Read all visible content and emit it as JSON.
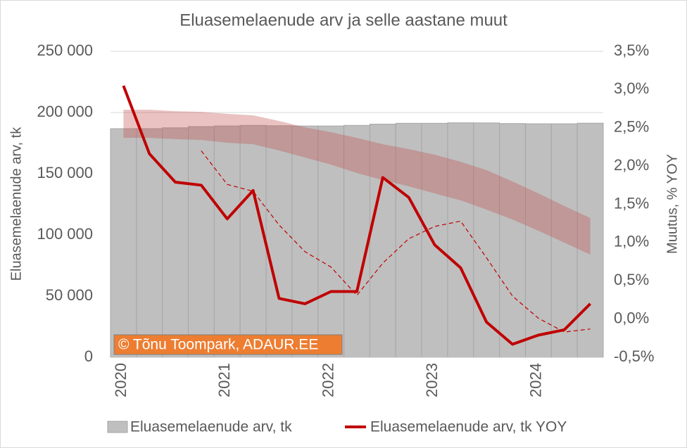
{
  "chart_data": {
    "type": "bar-line",
    "title": "Eluasemelaenude arv ja selle aastane muut",
    "y_label": "Eluasemelaenude arv, tk",
    "y2_label": "Muutus, % YOY",
    "annotation": "© Tõnu Toompark, ADAUR.EE",
    "categories": [
      "2020",
      null,
      null,
      null,
      "2021",
      null,
      null,
      null,
      "2022",
      null,
      null,
      null,
      "2023",
      null,
      null,
      null,
      "2024",
      null,
      null
    ],
    "series": [
      {
        "name": "Eluasemelaenude arv, tk",
        "type": "bar",
        "color": "#bfbfbf",
        "values": [
          186800,
          186800,
          187500,
          188500,
          189000,
          189500,
          189200,
          189000,
          189000,
          189500,
          190500,
          191200,
          191200,
          191600,
          191500,
          191000,
          190800,
          190800,
          191300
        ]
      },
      {
        "name": "Eluasemelaenude arv, tk YOY",
        "type": "line",
        "axis": "y2",
        "color": "#c00000",
        "values": [
          3.05,
          2.16,
          1.79,
          1.75,
          1.31,
          1.68,
          0.27,
          0.2,
          0.36,
          0.36,
          1.85,
          1.59,
          0.97,
          0.67,
          -0.04,
          -0.33,
          -0.21,
          -0.14,
          0.2
        ]
      },
      {
        "type": "line",
        "axis": "y2",
        "color": "#c00000",
        "dashed": true,
        "values": [
          null,
          null,
          null,
          2.2,
          1.76,
          1.67,
          1.23,
          0.88,
          0.68,
          0.31,
          0.73,
          1.05,
          1.21,
          1.28,
          0.8,
          0.3,
          0.01,
          -0.17,
          -0.13
        ]
      }
    ],
    "band": {
      "color": "#c0504d",
      "upper": [
        202300,
        202300,
        201100,
        200600,
        198900,
        197700,
        193100,
        187900,
        183900,
        179300,
        174100,
        170100,
        165500,
        159800,
        152900,
        143700,
        133900,
        123600,
        113800
      ],
      "lower": [
        179300,
        179300,
        178200,
        177600,
        175300,
        174100,
        169000,
        163200,
        157500,
        150600,
        144800,
        139700,
        133900,
        128200,
        120700,
        112600,
        103400,
        93700,
        83900
      ]
    },
    "ylim": [
      0,
      250000
    ],
    "yticks": [
      0,
      {
        "value": 50000,
        "label": "50 000"
      },
      {
        "value": 100000,
        "label": "100 000"
      },
      {
        "value": 150000,
        "label": "150 000"
      },
      {
        "value": 200000,
        "label": "200 000"
      },
      {
        "value": 250000,
        "label": "250 000"
      }
    ],
    "y2lim": [
      -0.5,
      3.5
    ],
    "y2ticks": [
      {
        "value": -0.5,
        "label": "-0,5%"
      },
      {
        "value": 0,
        "label": "0,0%"
      },
      {
        "value": 0.5,
        "label": "0,5%"
      },
      {
        "value": 1,
        "label": "1,0%"
      },
      {
        "value": 1.5,
        "label": "1,5%"
      },
      {
        "value": 2,
        "label": "2,0%"
      },
      {
        "value": 2.5,
        "label": "2,5%"
      },
      {
        "value": 3,
        "label": "3,0%"
      },
      {
        "value": 3.5,
        "label": "3,5%"
      }
    ],
    "grid": true,
    "legend": "bottom"
  }
}
